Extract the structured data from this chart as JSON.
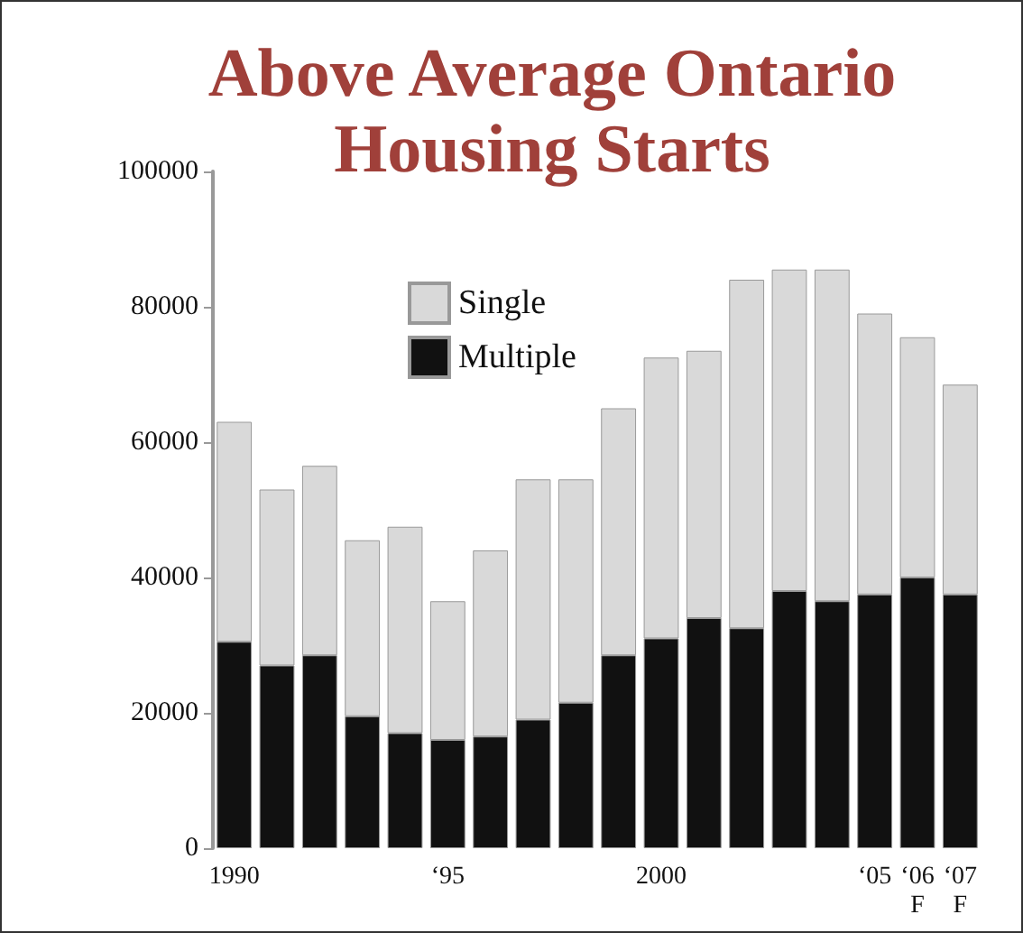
{
  "chart_data": {
    "type": "bar",
    "title": "Above Average Ontario\nHousing Starts",
    "categories": [
      "1990",
      null,
      null,
      null,
      null,
      "‘95",
      null,
      null,
      null,
      null,
      "2000",
      null,
      null,
      null,
      null,
      "‘05",
      "‘06\nF",
      "‘07\nF"
    ],
    "stacked": true,
    "series": [
      {
        "name": "Multiple",
        "color": "#111111",
        "values": [
          30500,
          27000,
          28500,
          19500,
          17000,
          16000,
          16500,
          19000,
          21500,
          28500,
          31000,
          34000,
          32500,
          38000,
          36500,
          37500,
          40000,
          37500
        ]
      },
      {
        "name": "Single",
        "color": "#d9d9d9",
        "values": [
          32500,
          26000,
          28000,
          26000,
          30500,
          20500,
          27500,
          35500,
          33000,
          36500,
          41500,
          39500,
          51500,
          47500,
          49000,
          41500,
          35500,
          31000
        ]
      }
    ],
    "ylim": [
      0,
      100000
    ],
    "yticks": [
      0,
      20000,
      40000,
      60000,
      80000,
      100000
    ],
    "grid": false,
    "legend": "top"
  }
}
